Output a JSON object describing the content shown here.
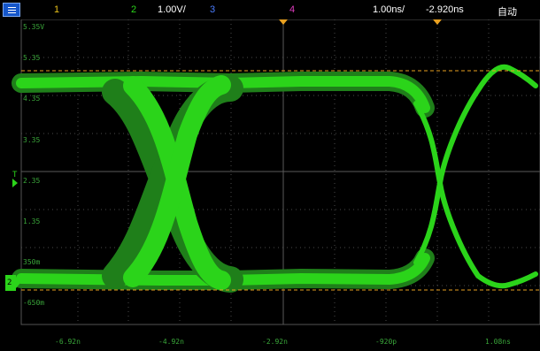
{
  "toolbar": {
    "ch1_label": "1",
    "ch2_label": "2",
    "ch2_scale": "1.00V/",
    "ch3_label": "3",
    "ch4_label": "4",
    "timebase": "1.00ns/",
    "delay": "-2.920ns",
    "run_mode": "自动"
  },
  "graticule": {
    "y_labels": [
      "5.35V",
      "5.35",
      "4.35",
      "3.35",
      "2.35",
      "1.35",
      "350m",
      "-650m"
    ],
    "x_labels": [
      "-6.92n",
      "-4.92n",
      "-2.92n",
      "-920p",
      "1.08ns"
    ]
  },
  "markers": {
    "trigger_level": "T",
    "channel_ground": "2"
  },
  "colors": {
    "trace": "#2bd41a",
    "trace_dark": "#1f7f1a",
    "grid": "#4a4a4a",
    "cursor": "#e8a020",
    "ch1": "#e8c21a",
    "ch2": "#2bd41a",
    "ch3": "#4a7dff",
    "ch4": "#e03cc0"
  }
}
